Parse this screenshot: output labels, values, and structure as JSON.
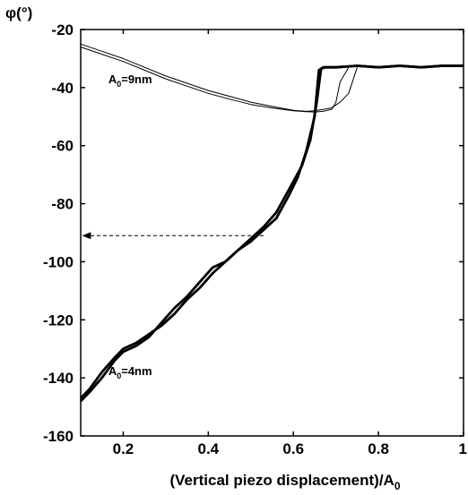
{
  "chart_data": {
    "type": "line",
    "ylabel": "φ(°)",
    "xlabel": "(Vertical piezo displacement)/A",
    "xlabel_sub": "0",
    "xlim": [
      0.1,
      1.0
    ],
    "ylim": [
      -160,
      -20
    ],
    "x_ticks": [
      {
        "value": 0.2,
        "label": "0.2"
      },
      {
        "value": 0.4,
        "label": "0.4"
      },
      {
        "value": 0.6,
        "label": "0.6"
      },
      {
        "value": 0.8,
        "label": "0.8"
      },
      {
        "value": 1.0,
        "label": "1"
      }
    ],
    "y_ticks": [
      {
        "value": -20,
        "label": "-20"
      },
      {
        "value": -40,
        "label": "-40"
      },
      {
        "value": -60,
        "label": "-60"
      },
      {
        "value": -80,
        "label": "-80"
      },
      {
        "value": -100,
        "label": "-100"
      },
      {
        "value": -120,
        "label": "-120"
      },
      {
        "value": -140,
        "label": "-140"
      },
      {
        "value": -160,
        "label": "-160"
      }
    ],
    "annotations": [
      {
        "id": "a9",
        "text": "A",
        "sub": "0",
        "tail": "=9nm",
        "x": 0.165,
        "y": -38.5
      },
      {
        "id": "a4",
        "text": "A",
        "sub": "0",
        "tail": "=4nm",
        "x": 0.165,
        "y": -139
      }
    ],
    "arrow": {
      "from": [
        0.53,
        -91
      ],
      "to": [
        0.105,
        -91
      ]
    },
    "series": [
      {
        "style": "thin",
        "x": [
          0.1,
          0.15,
          0.2,
          0.25,
          0.3,
          0.35,
          0.4,
          0.45,
          0.5,
          0.55,
          0.6,
          0.63,
          0.65,
          0.67,
          0.69,
          0.71,
          0.73,
          0.75
        ],
        "y": [
          -25,
          -27.5,
          -30,
          -33,
          -36,
          -38.5,
          -41,
          -43,
          -45,
          -46.5,
          -47.8,
          -48.2,
          -48,
          -47.5,
          -47,
          -45,
          -42,
          -33
        ]
      },
      {
        "style": "thin",
        "x": [
          0.1,
          0.15,
          0.2,
          0.25,
          0.3,
          0.35,
          0.4,
          0.45,
          0.5,
          0.55,
          0.6,
          0.63,
          0.65,
          0.67,
          0.69,
          0.7,
          0.71,
          0.73
        ],
        "y": [
          -26,
          -28.5,
          -31,
          -34,
          -37,
          -39.5,
          -42,
          -44,
          -45.8,
          -47,
          -48,
          -48.3,
          -48.4,
          -48.2,
          -47.5,
          -45,
          -38,
          -33
        ]
      },
      {
        "style": "thick",
        "x": [
          0.1,
          0.12,
          0.15,
          0.18,
          0.2,
          0.23,
          0.26,
          0.29,
          0.32,
          0.35,
          0.38,
          0.41,
          0.44,
          0.47,
          0.5,
          0.53,
          0.56,
          0.59,
          0.61,
          0.63,
          0.65,
          0.66,
          0.67,
          0.7,
          0.75,
          0.8,
          0.85,
          0.9,
          0.95,
          1.0
        ],
        "y": [
          -147,
          -144,
          -138,
          -133,
          -130,
          -128,
          -125,
          -122,
          -118,
          -113,
          -109,
          -104,
          -100,
          -96,
          -93,
          -89,
          -85,
          -77,
          -71,
          -62,
          -50,
          -34,
          -33,
          -33,
          -32.5,
          -33,
          -32.5,
          -33,
          -32.5,
          -32.5
        ]
      },
      {
        "style": "thick",
        "x": [
          0.1,
          0.12,
          0.15,
          0.18,
          0.2,
          0.23,
          0.26,
          0.29,
          0.32,
          0.35,
          0.38,
          0.41,
          0.44,
          0.47,
          0.5,
          0.53,
          0.56,
          0.59,
          0.62,
          0.64,
          0.655,
          0.665,
          0.675,
          0.7,
          0.75,
          0.8,
          0.85,
          0.9,
          0.95,
          1.0
        ],
        "y": [
          -148,
          -145,
          -140,
          -134,
          -131,
          -129,
          -126,
          -121,
          -116,
          -112,
          -107,
          -102,
          -100,
          -96,
          -92,
          -88,
          -83,
          -75,
          -67,
          -58,
          -45,
          -33.5,
          -33,
          -33,
          -32.5,
          -33,
          -32.5,
          -33,
          -32.5,
          -32.5
        ]
      }
    ]
  }
}
